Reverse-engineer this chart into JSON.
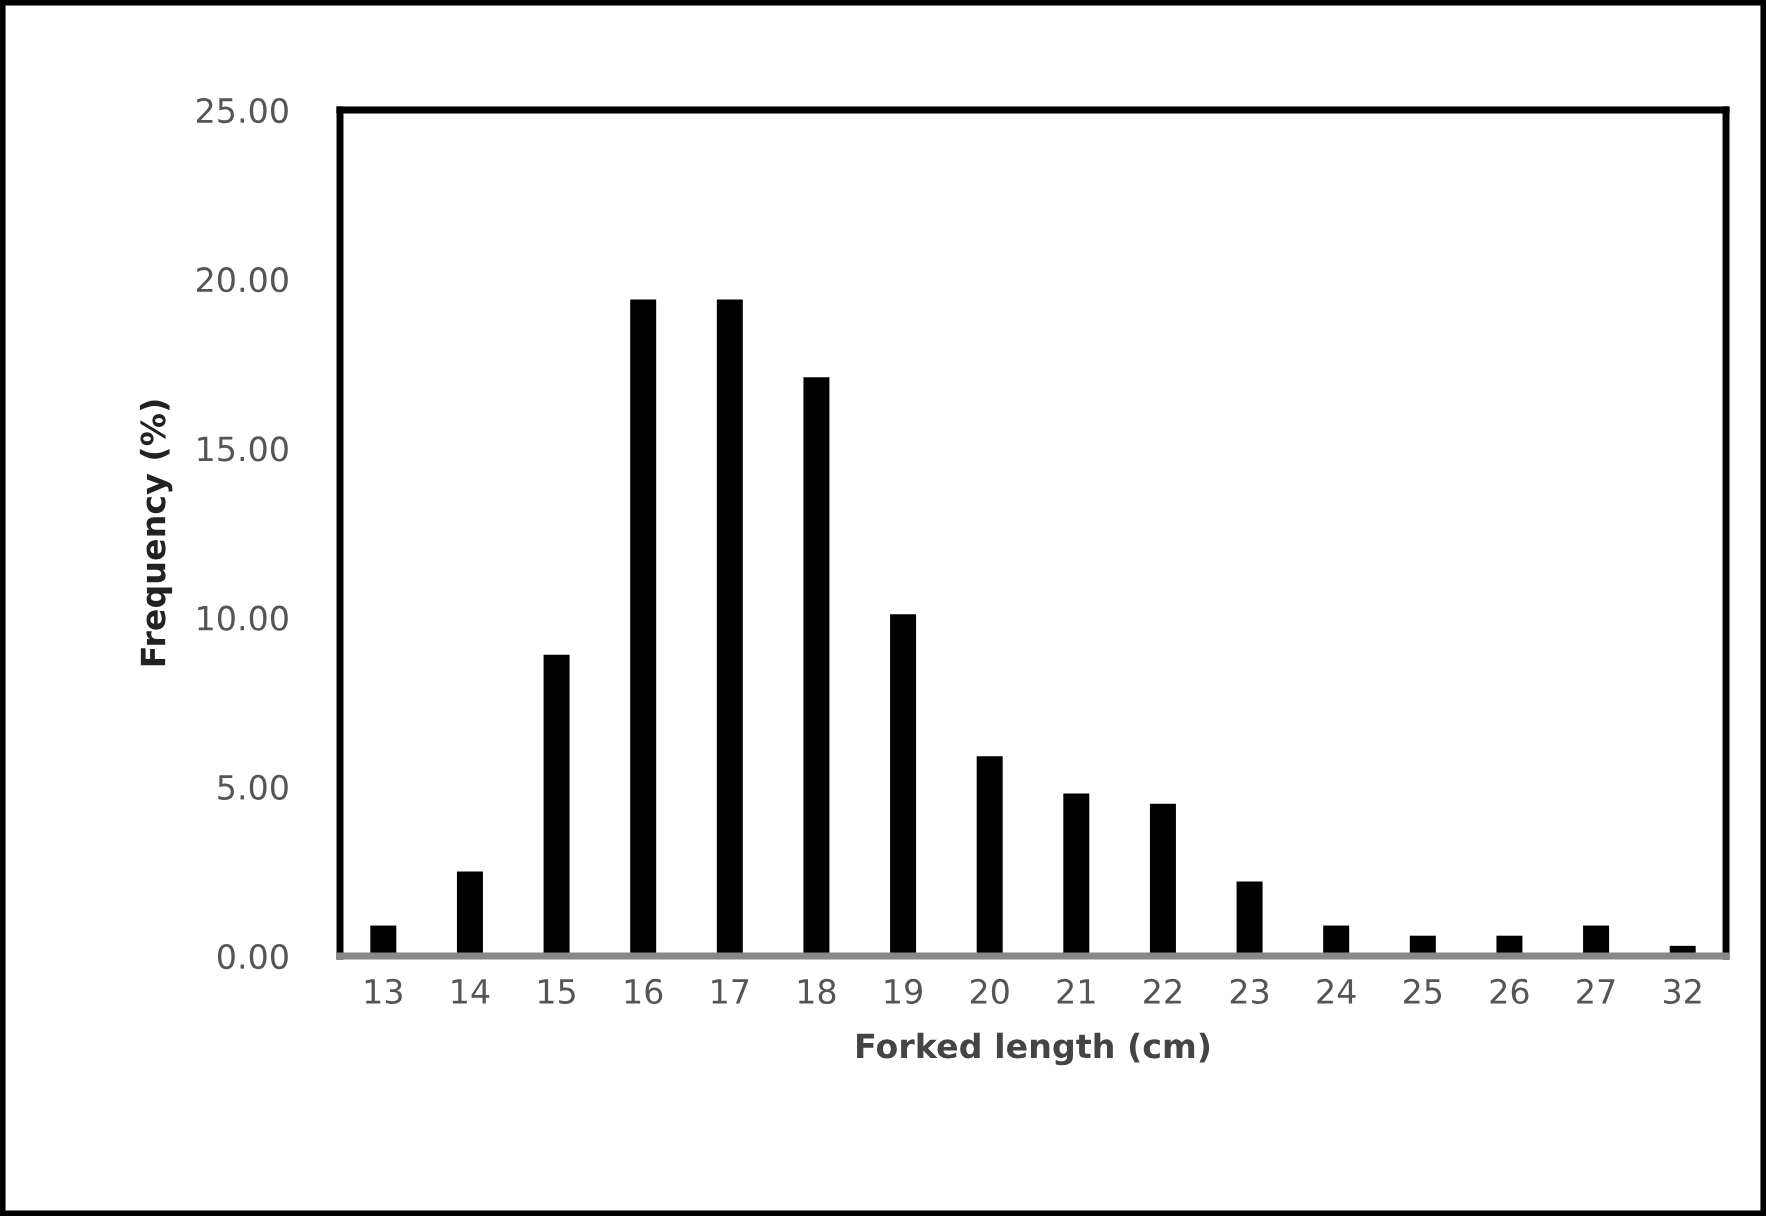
{
  "chart_data": {
    "type": "bar",
    "xlabel": "Forked length (cm)",
    "ylabel": "Frequency (%)",
    "categories": [
      "13",
      "14",
      "15",
      "16",
      "17",
      "18",
      "19",
      "20",
      "21",
      "22",
      "23",
      "24",
      "25",
      "26",
      "27",
      "32"
    ],
    "values": [
      0.9,
      2.5,
      8.9,
      19.4,
      19.4,
      17.1,
      10.1,
      5.9,
      4.8,
      4.5,
      2.2,
      0.9,
      0.6,
      0.6,
      0.9,
      0.3
    ],
    "color": "#000000",
    "ylim": [
      0,
      25
    ],
    "yticks": [
      {
        "value": 0,
        "label": "0.00"
      },
      {
        "value": 5,
        "label": "5.00"
      },
      {
        "value": 10,
        "label": "10.00"
      },
      {
        "value": 15,
        "label": "15.00"
      },
      {
        "value": 20,
        "label": "20.00"
      },
      {
        "value": 25,
        "label": "25.00"
      }
    ],
    "grid": false,
    "legend": false
  }
}
